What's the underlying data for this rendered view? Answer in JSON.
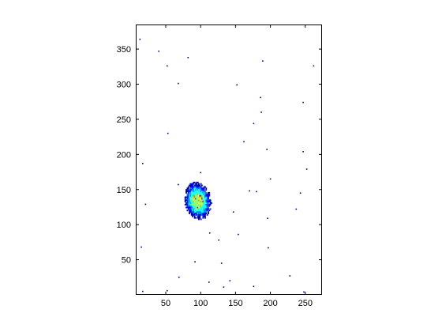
{
  "chart_data": {
    "type": "heatmap",
    "title": "",
    "xlabel": "",
    "ylabel": "",
    "xlim": [
      7,
      274
    ],
    "ylim": [
      0,
      385
    ],
    "y_direction": "up",
    "grid": false,
    "legend": "none",
    "xticks": [
      50,
      100,
      150,
      200,
      250
    ],
    "yticks": [
      50,
      100,
      150,
      200,
      250,
      300,
      350
    ],
    "xtick_labels": [
      "50",
      "100",
      "150",
      "200",
      "250"
    ],
    "ytick_labels": [
      "50",
      "100",
      "150",
      "200",
      "250",
      "300",
      "350"
    ],
    "colormap": [
      "#000090",
      "#0000ff",
      "#0080ff",
      "#00ffff",
      "#80ff80",
      "#ffff00",
      "#ff8000",
      "#ff0000"
    ],
    "blob": {
      "center": [
        96,
        134
      ],
      "radius_x": 17,
      "radius_y": 24,
      "peak_intensity": 1.0
    },
    "scattered_points": [
      {
        "x": 13,
        "y": 364
      },
      {
        "x": 40,
        "y": 347
      },
      {
        "x": 82,
        "y": 338
      },
      {
        "x": 52,
        "y": 326
      },
      {
        "x": 68,
        "y": 301
      },
      {
        "x": 152,
        "y": 299
      },
      {
        "x": 186,
        "y": 281
      },
      {
        "x": 247,
        "y": 274
      },
      {
        "x": 262,
        "y": 326
      },
      {
        "x": 189,
        "y": 333
      },
      {
        "x": 187,
        "y": 260
      },
      {
        "x": 176,
        "y": 244
      },
      {
        "x": 162,
        "y": 218
      },
      {
        "x": 53,
        "y": 230
      },
      {
        "x": 195,
        "y": 207
      },
      {
        "x": 247,
        "y": 204
      },
      {
        "x": 17,
        "y": 187
      },
      {
        "x": 252,
        "y": 179
      },
      {
        "x": 200,
        "y": 165
      },
      {
        "x": 170,
        "y": 148
      },
      {
        "x": 100,
        "y": 174
      },
      {
        "x": 68,
        "y": 157
      },
      {
        "x": 21,
        "y": 129
      },
      {
        "x": 243,
        "y": 145
      },
      {
        "x": 180,
        "y": 147
      },
      {
        "x": 147,
        "y": 118
      },
      {
        "x": 196,
        "y": 109
      },
      {
        "x": 237,
        "y": 122
      },
      {
        "x": 113,
        "y": 88
      },
      {
        "x": 154,
        "y": 86
      },
      {
        "x": 126,
        "y": 78
      },
      {
        "x": 197,
        "y": 67
      },
      {
        "x": 15,
        "y": 68
      },
      {
        "x": 130,
        "y": 45
      },
      {
        "x": 92,
        "y": 47
      },
      {
        "x": 69,
        "y": 25
      },
      {
        "x": 142,
        "y": 20
      },
      {
        "x": 112,
        "y": 18
      },
      {
        "x": 228,
        "y": 27
      },
      {
        "x": 176,
        "y": 12
      },
      {
        "x": 52,
        "y": 6
      },
      {
        "x": 17,
        "y": 5
      },
      {
        "x": 248,
        "y": 4
      },
      {
        "x": 133,
        "y": 11
      }
    ]
  }
}
